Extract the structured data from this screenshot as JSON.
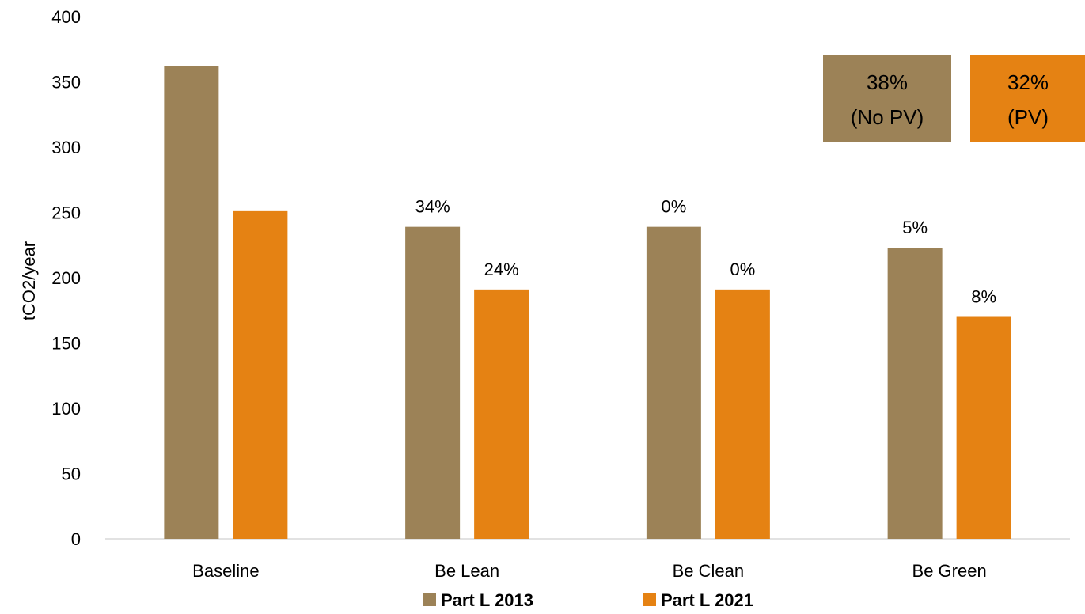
{
  "chart_data": {
    "type": "bar",
    "xlabel": "",
    "ylabel": "tCO2/year",
    "ylim": [
      0,
      400
    ],
    "yticks": [
      0,
      50,
      100,
      150,
      200,
      250,
      300,
      350,
      400
    ],
    "categories": [
      "Baseline",
      "Be Lean",
      "Be Clean",
      "Be Green"
    ],
    "series": [
      {
        "name": "Part L 2013",
        "color": "#9C8257",
        "values": [
          362,
          239,
          239,
          223
        ],
        "labels": [
          "",
          "34%",
          "0%",
          "5%"
        ]
      },
      {
        "name": "Part L 2021",
        "color": "#E58213",
        "values": [
          251,
          191,
          191,
          170
        ],
        "labels": [
          "",
          "24%",
          "0%",
          "8%"
        ]
      }
    ],
    "annotations": [
      {
        "line1": "38%",
        "line2": "(No PV)",
        "color": "#9C8257"
      },
      {
        "line1": "32%",
        "line2": "(PV)",
        "color": "#E58213"
      }
    ],
    "legend_position": "bottom",
    "grid": false
  }
}
